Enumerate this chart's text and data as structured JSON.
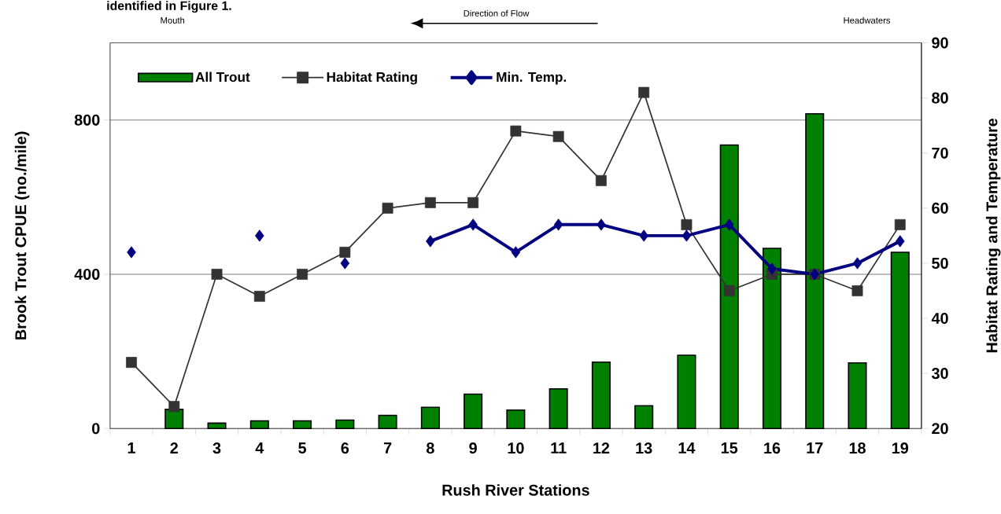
{
  "chart_data": {
    "type": "bar",
    "title": "identified in Figure 1.",
    "xlabel": "Rush River Stations",
    "ylabel": "Brook Trout CPUE (no./mile)",
    "y2label": "Habitat Rating and Temperature",
    "annotations": [
      "Mouth",
      "Direction of Flow",
      "Headwaters"
    ],
    "categories": [
      "1",
      "2",
      "3",
      "4",
      "5",
      "6",
      "7",
      "8",
      "9",
      "10",
      "11",
      "12",
      "13",
      "14",
      "15",
      "16",
      "17",
      "18",
      "19"
    ],
    "series": [
      {
        "name": "All Trout",
        "color": "#008000",
        "values": [
          null,
          50,
          14,
          20,
          20,
          22,
          34,
          55,
          89,
          48,
          103,
          172,
          59,
          190,
          735,
          467,
          816,
          170,
          457
        ]
      },
      {
        "name": "Habitat Rating",
        "type": "line",
        "color": "#333333",
        "marker": "square",
        "axis": "y2",
        "values": [
          32,
          24,
          48,
          44,
          48,
          52,
          60,
          61,
          61,
          74,
          73,
          65,
          81,
          57,
          45,
          48,
          48,
          45,
          57
        ]
      },
      {
        "name": "Min. Temp.",
        "type": "line",
        "color": "#000080",
        "marker": "diamond",
        "axis": "y2",
        "values": [
          52,
          null,
          null,
          55,
          null,
          50,
          null,
          54,
          57,
          52,
          57,
          57,
          55,
          55,
          57,
          49,
          48,
          50,
          54
        ]
      }
    ],
    "ylim": [
      0,
      1000
    ],
    "yticks": [
      0,
      400,
      800
    ],
    "y2lim": [
      20,
      90
    ],
    "y2ticks": [
      20,
      30,
      40,
      50,
      60,
      70,
      80,
      90
    ],
    "grid": "y",
    "legend": "top left"
  }
}
